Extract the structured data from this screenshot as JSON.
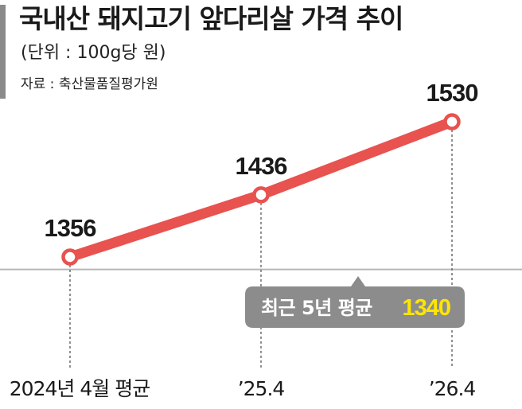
{
  "header": {
    "title": "국내산 돼지고기 앞다리살 가격 추이",
    "unit": "(단위 : 100g당 원)",
    "source": "자료 : 축산물품질평가원"
  },
  "chart_data": {
    "type": "line",
    "categories": [
      "2024년 4월 평균",
      "’25.4",
      "’26.4"
    ],
    "series": [
      {
        "values": [
          1356,
          1436,
          1530
        ]
      }
    ],
    "data_labels": [
      "1356",
      "1436",
      "1530"
    ],
    "reference_line": {
      "value": 1340,
      "label_prefix": "최근 5년 평균",
      "label_value": "1340"
    },
    "ylim": [
      1200,
      1560
    ]
  },
  "colors": {
    "line": "#e8524f",
    "marker_fill": "#ffffff",
    "reference_line": "#b8b8b8",
    "callout_bg": "#8c8c8c",
    "callout_text": "#ffffff",
    "callout_value": "#ffe600",
    "guide": "#555555",
    "header_bar": "#8a8a8a"
  }
}
